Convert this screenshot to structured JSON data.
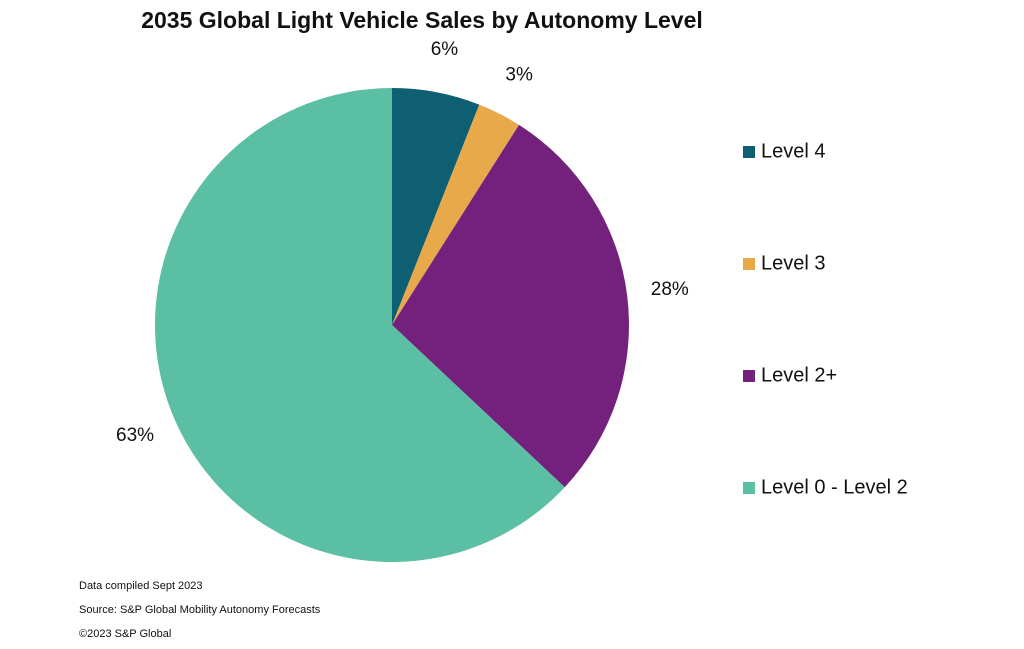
{
  "chart_data": {
    "type": "pie",
    "title": "2035 Global Light Vehicle Sales by Autonomy Level",
    "categories": [
      "Level 4",
      "Level 3",
      "Level 2+",
      "Level 0 - Level 2"
    ],
    "values": [
      6,
      3,
      28,
      63
    ],
    "value_labels": [
      "6%",
      "3%",
      "28%",
      "63%"
    ],
    "colors": [
      "#0f5f73",
      "#e8a94a",
      "#74207d",
      "#5bbfa3"
    ],
    "legend": "right",
    "notes": [
      "Data compiled Sept 2023",
      "Source: S&P Global Mobility Autonomy Forecasts",
      "©2023 S&P Global"
    ]
  }
}
